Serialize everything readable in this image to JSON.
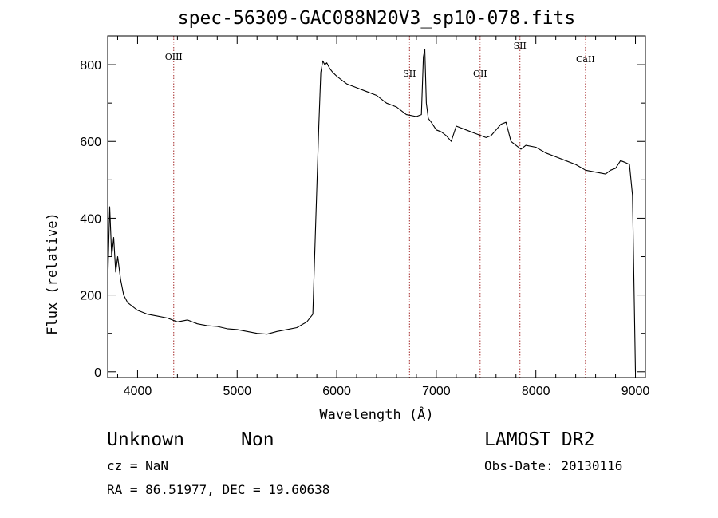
{
  "chart_data": {
    "type": "line",
    "title": "spec-56309-GAC088N20V3_sp10-078.fits",
    "xlabel": "Wavelength (Å)",
    "ylabel": "Flux (relative)",
    "xlim": [
      3700,
      9100
    ],
    "ylim": [
      -15,
      875
    ],
    "xticks": [
      4000,
      5000,
      6000,
      7000,
      8000,
      9000
    ],
    "yticks": [
      0,
      200,
      400,
      600,
      800
    ],
    "grid": false,
    "series": [
      {
        "x": [
          3700,
          3720,
          3740,
          3760,
          3780,
          3800,
          3830,
          3860,
          3900,
          3950,
          4000,
          4100,
          4200,
          4300,
          4400,
          4500,
          4600,
          4700,
          4800,
          4900,
          5000,
          5100,
          5200,
          5300,
          5400,
          5500,
          5600,
          5700,
          5760,
          5790,
          5820,
          5840,
          5860,
          5880,
          5900,
          5930,
          5960,
          6000,
          6050,
          6100,
          6200,
          6300,
          6400,
          6500,
          6600,
          6700,
          6800,
          6850,
          6870,
          6885,
          6900,
          6920,
          6950,
          7000,
          7050,
          7100,
          7150,
          7200,
          7300,
          7400,
          7500,
          7550,
          7600,
          7650,
          7700,
          7750,
          7800,
          7850,
          7900,
          8000,
          8100,
          8200,
          8300,
          8400,
          8500,
          8600,
          8700,
          8750,
          8800,
          8850,
          8900,
          8940,
          8970,
          9000
        ],
        "y": [
          230,
          430,
          300,
          350,
          260,
          300,
          240,
          200,
          180,
          170,
          160,
          150,
          145,
          140,
          130,
          135,
          125,
          120,
          118,
          112,
          110,
          105,
          100,
          98,
          105,
          110,
          115,
          130,
          150,
          400,
          640,
          780,
          810,
          800,
          805,
          790,
          780,
          770,
          760,
          750,
          740,
          730,
          720,
          700,
          690,
          670,
          665,
          670,
          820,
          840,
          700,
          660,
          650,
          630,
          625,
          615,
          600,
          640,
          630,
          620,
          610,
          615,
          630,
          645,
          650,
          600,
          590,
          580,
          590,
          585,
          570,
          560,
          550,
          540,
          525,
          520,
          515,
          525,
          530,
          550,
          545,
          540,
          460,
          0
        ]
      }
    ],
    "annotations": [
      {
        "label": "OIII",
        "x": 4363
      },
      {
        "label": "SII",
        "x": 6731
      },
      {
        "label": "OII",
        "x": 7440
      },
      {
        "label": "SII",
        "x": 7840
      },
      {
        "label": "CaII",
        "x": 8498
      }
    ],
    "annotation_color": "#a52a2a"
  },
  "footer": {
    "class": "Unknown",
    "subclass": "Non",
    "survey": "LAMOST DR2",
    "cz": "cz = NaN",
    "obs_date": "Obs-Date: 20130116",
    "radec": "RA =  86.51977, DEC =  19.60638"
  }
}
